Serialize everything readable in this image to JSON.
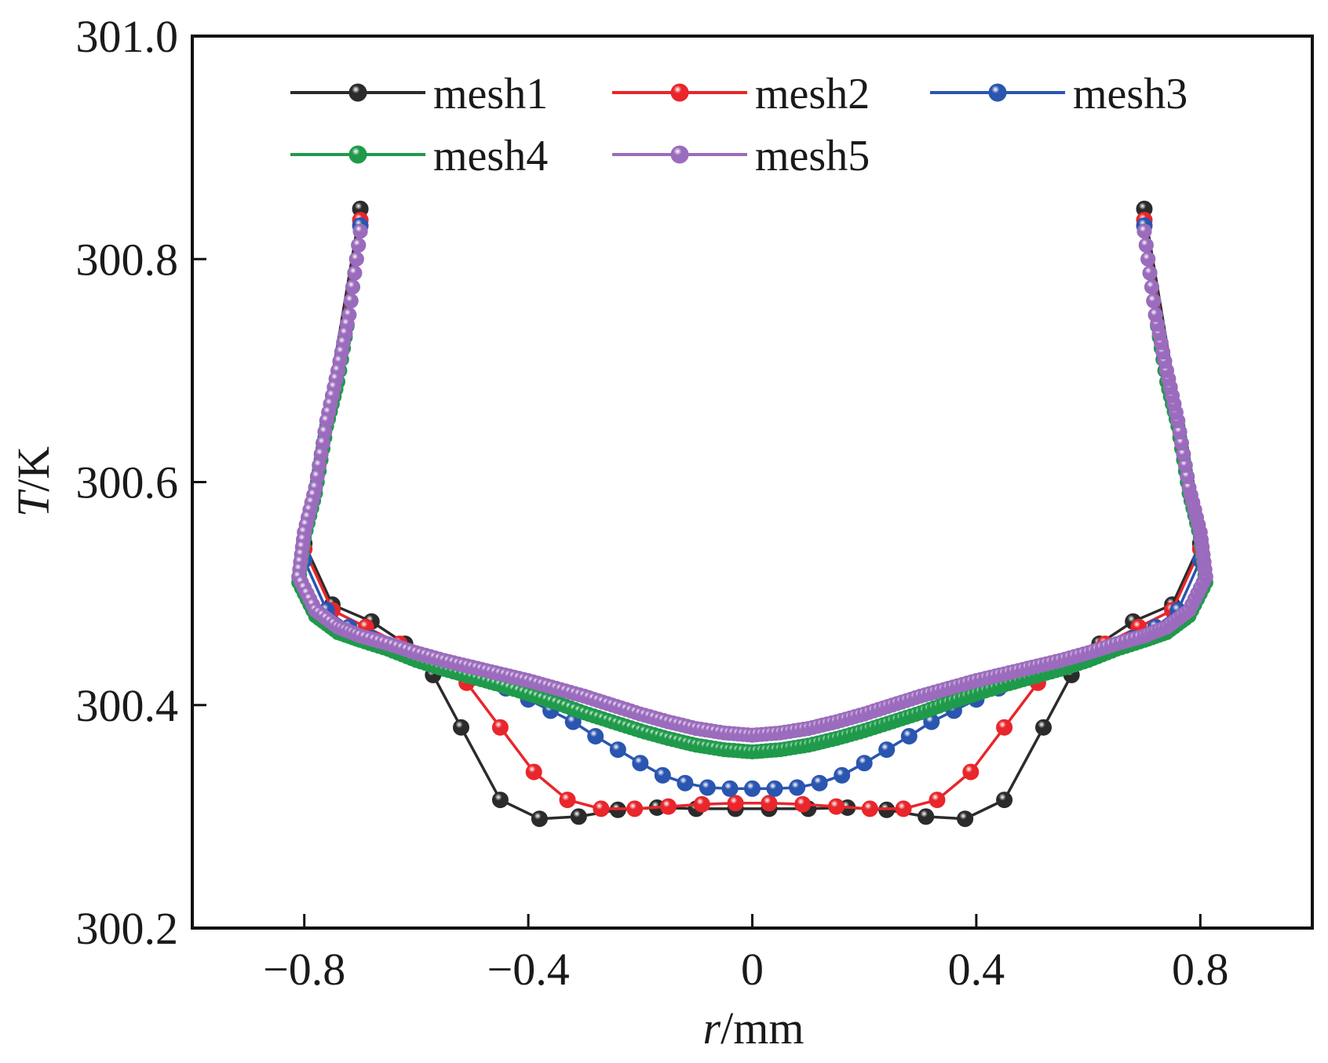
{
  "chart_data": {
    "type": "line",
    "title": "",
    "xlabel": "r/mm",
    "xlabel_italic_part": "r",
    "xlabel_rest": "/mm",
    "ylabel": "T/K",
    "ylabel_italic_part": "T",
    "ylabel_rest": "/K",
    "xlim": [
      -1.0,
      1.0
    ],
    "ylim": [
      300.2,
      301.0
    ],
    "xticks": [
      -0.8,
      -0.4,
      0,
      0.4,
      0.8
    ],
    "xtick_labels": [
      "−0.8",
      "−0.4",
      "0",
      "0.4",
      "0.8"
    ],
    "yticks": [
      300.2,
      300.4,
      300.6,
      300.8,
      301.0
    ],
    "ytick_labels": [
      "300.2",
      "300.4",
      "300.6",
      "300.8",
      "301.0"
    ],
    "grid": false,
    "legend_position": "top",
    "series": [
      {
        "name": "mesh1",
        "color": "#2b2b2b",
        "x": [
          -0.7,
          -0.8,
          -0.75,
          -0.68,
          -0.62,
          -0.57,
          -0.52,
          -0.45,
          -0.38,
          -0.31,
          -0.24,
          -0.17,
          -0.1,
          -0.03,
          0.03,
          0.1,
          0.17,
          0.24,
          0.31,
          0.38,
          0.45,
          0.52,
          0.57,
          0.62,
          0.68,
          0.75,
          0.8,
          0.7
        ],
        "y": [
          300.845,
          300.545,
          300.49,
          300.475,
          300.455,
          300.427,
          300.38,
          300.315,
          300.298,
          300.3,
          300.306,
          300.308,
          300.307,
          300.307,
          300.307,
          300.307,
          300.308,
          300.306,
          300.3,
          300.298,
          300.315,
          300.38,
          300.427,
          300.455,
          300.475,
          300.49,
          300.545,
          300.845
        ]
      },
      {
        "name": "mesh2",
        "color": "#e8262b",
        "x": [
          -0.7,
          -0.8,
          -0.75,
          -0.69,
          -0.63,
          -0.57,
          -0.51,
          -0.45,
          -0.39,
          -0.33,
          -0.27,
          -0.21,
          -0.15,
          -0.09,
          -0.03,
          0.03,
          0.09,
          0.15,
          0.21,
          0.27,
          0.33,
          0.39,
          0.45,
          0.51,
          0.57,
          0.63,
          0.69,
          0.75,
          0.8,
          0.7
        ],
        "y": [
          300.835,
          300.54,
          300.485,
          300.47,
          300.455,
          300.44,
          300.42,
          300.38,
          300.34,
          300.315,
          300.307,
          300.307,
          300.309,
          300.311,
          300.312,
          300.312,
          300.311,
          300.309,
          300.307,
          300.307,
          300.315,
          300.34,
          300.38,
          300.42,
          300.44,
          300.455,
          300.47,
          300.485,
          300.54,
          300.835
        ]
      },
      {
        "name": "mesh3",
        "color": "#2a55b0",
        "x": [
          -0.7,
          -0.8,
          -0.76,
          -0.72,
          -0.68,
          -0.64,
          -0.6,
          -0.56,
          -0.52,
          -0.48,
          -0.44,
          -0.4,
          -0.36,
          -0.32,
          -0.28,
          -0.24,
          -0.2,
          -0.16,
          -0.12,
          -0.08,
          -0.04,
          0.0,
          0.04,
          0.08,
          0.12,
          0.16,
          0.2,
          0.24,
          0.28,
          0.32,
          0.36,
          0.4,
          0.44,
          0.48,
          0.52,
          0.56,
          0.6,
          0.64,
          0.68,
          0.72,
          0.76,
          0.8,
          0.7
        ],
        "y": [
          300.83,
          300.53,
          300.485,
          300.47,
          300.46,
          300.45,
          300.445,
          300.435,
          300.43,
          300.425,
          300.415,
          300.405,
          300.395,
          300.385,
          300.372,
          300.36,
          300.348,
          300.337,
          300.33,
          300.326,
          300.325,
          300.325,
          300.325,
          300.326,
          300.33,
          300.337,
          300.348,
          300.36,
          300.372,
          300.385,
          300.395,
          300.405,
          300.415,
          300.425,
          300.43,
          300.435,
          300.445,
          300.45,
          300.46,
          300.47,
          300.485,
          300.53,
          300.83
        ]
      },
      {
        "name": "mesh4",
        "color": "#1f9a4a",
        "x": [
          -0.7,
          -0.72,
          -0.74,
          -0.76,
          -0.78,
          -0.8,
          -0.81,
          -0.78,
          -0.74,
          -0.7,
          -0.65,
          -0.6,
          -0.55,
          -0.5,
          -0.45,
          -0.4,
          -0.35,
          -0.3,
          -0.25,
          -0.2,
          -0.15,
          -0.1,
          -0.05,
          0.0,
          0.05,
          0.1,
          0.15,
          0.2,
          0.25,
          0.3,
          0.35,
          0.4,
          0.45,
          0.5,
          0.55,
          0.6,
          0.65,
          0.7,
          0.74,
          0.78,
          0.81,
          0.8,
          0.78,
          0.76,
          0.74,
          0.72,
          0.7
        ],
        "y": [
          300.825,
          300.75,
          300.69,
          300.65,
          300.59,
          300.55,
          300.51,
          300.48,
          300.465,
          300.458,
          300.45,
          300.44,
          300.432,
          300.425,
          300.418,
          300.41,
          300.402,
          300.393,
          300.385,
          300.377,
          300.37,
          300.364,
          300.36,
          300.358,
          300.36,
          300.364,
          300.37,
          300.377,
          300.385,
          300.393,
          300.402,
          300.41,
          300.418,
          300.425,
          300.432,
          300.44,
          300.45,
          300.458,
          300.465,
          300.48,
          300.51,
          300.55,
          300.59,
          300.65,
          300.69,
          300.75,
          300.825
        ]
      },
      {
        "name": "mesh5",
        "color": "#9b6bbd",
        "x": [
          -0.7,
          -0.72,
          -0.74,
          -0.76,
          -0.78,
          -0.8,
          -0.81,
          -0.78,
          -0.74,
          -0.7,
          -0.65,
          -0.6,
          -0.55,
          -0.5,
          -0.45,
          -0.4,
          -0.35,
          -0.3,
          -0.25,
          -0.2,
          -0.15,
          -0.1,
          -0.05,
          0.0,
          0.05,
          0.1,
          0.15,
          0.2,
          0.25,
          0.3,
          0.35,
          0.4,
          0.45,
          0.5,
          0.55,
          0.6,
          0.65,
          0.7,
          0.74,
          0.78,
          0.81,
          0.8,
          0.78,
          0.76,
          0.74,
          0.72,
          0.7
        ],
        "y": [
          300.825,
          300.75,
          300.7,
          300.655,
          300.595,
          300.555,
          300.515,
          300.485,
          300.47,
          300.462,
          300.455,
          300.447,
          300.44,
          300.434,
          300.428,
          300.422,
          300.415,
          300.408,
          300.4,
          300.392,
          300.385,
          300.379,
          300.375,
          300.373,
          300.375,
          300.379,
          300.385,
          300.392,
          300.4,
          300.408,
          300.415,
          300.422,
          300.428,
          300.434,
          300.44,
          300.447,
          300.455,
          300.462,
          300.47,
          300.485,
          300.515,
          300.555,
          300.595,
          300.655,
          300.7,
          300.75,
          300.825
        ]
      }
    ]
  }
}
